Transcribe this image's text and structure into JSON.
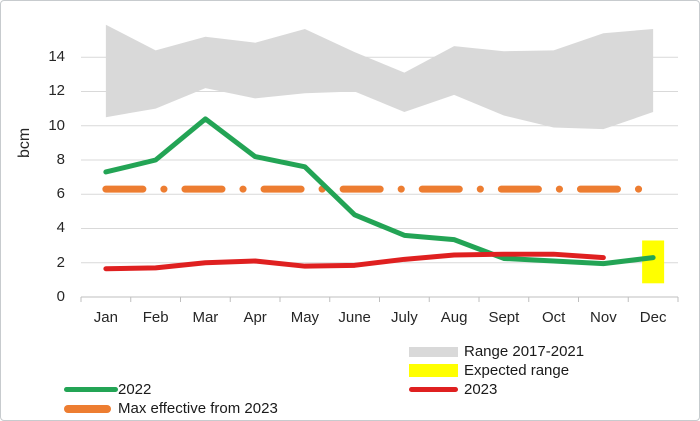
{
  "chart_data": {
    "type": "line",
    "ylabel": "bcm",
    "categories": [
      "Jan",
      "Feb",
      "Mar",
      "Apr",
      "May",
      "June",
      "July",
      "Aug",
      "Sept",
      "Oct",
      "Nov",
      "Dec"
    ],
    "y_ticks": [
      0,
      2,
      4,
      6,
      8,
      10,
      12,
      14
    ],
    "y_tick_labels": [
      "0",
      "2",
      "4",
      "6",
      "8",
      "10",
      "12",
      "14"
    ],
    "ylim": [
      0,
      16
    ],
    "grid": "horizontal",
    "gridline_color": "#d9d9d9",
    "axis_color": "#bfbfbf",
    "series": [
      {
        "name": "Range 2017-2021",
        "type": "area-band",
        "color": "#d9d9d9",
        "upper": [
          15.9,
          14.4,
          15.2,
          14.85,
          15.65,
          14.3,
          13.1,
          14.65,
          14.35,
          14.4,
          15.4,
          15.65
        ],
        "lower": [
          10.5,
          11.0,
          12.2,
          11.6,
          11.9,
          12.0,
          10.8,
          11.8,
          10.6,
          9.9,
          9.8,
          10.8
        ]
      },
      {
        "name": "Expected range",
        "type": "vertical-bar",
        "color": "#ffff00",
        "category": "Dec",
        "low": 0.8,
        "high": 3.3
      },
      {
        "name": "Max effective from 2023",
        "type": "dash-dot-line",
        "color": "#ed7d31",
        "constant": 6.3
      },
      {
        "name": "2022",
        "type": "line",
        "color": "#23a455",
        "values": [
          7.3,
          8.0,
          10.4,
          8.2,
          7.6,
          4.8,
          3.6,
          3.35,
          2.25,
          2.1,
          1.95,
          2.3
        ]
      },
      {
        "name": "2023",
        "type": "line",
        "color": "#df2020",
        "values": [
          1.65,
          1.7,
          2.0,
          2.1,
          1.8,
          1.85,
          2.2,
          2.45,
          2.5,
          2.5,
          2.3,
          null
        ]
      }
    ]
  },
  "legends": {
    "right": [
      {
        "label": "Range 2017-2021",
        "color": "#d9d9d9",
        "swatch": "band"
      },
      {
        "label": "Expected range",
        "color": "#ffff00",
        "swatch": "bar"
      },
      {
        "label": "2023",
        "color": "#df2020",
        "swatch": "line"
      }
    ],
    "left": [
      {
        "label": "2022",
        "color": "#23a455",
        "swatch": "line"
      },
      {
        "label": "Max effective from 2023",
        "color": "#ed7d31",
        "swatch": "thick-line"
      }
    ]
  }
}
